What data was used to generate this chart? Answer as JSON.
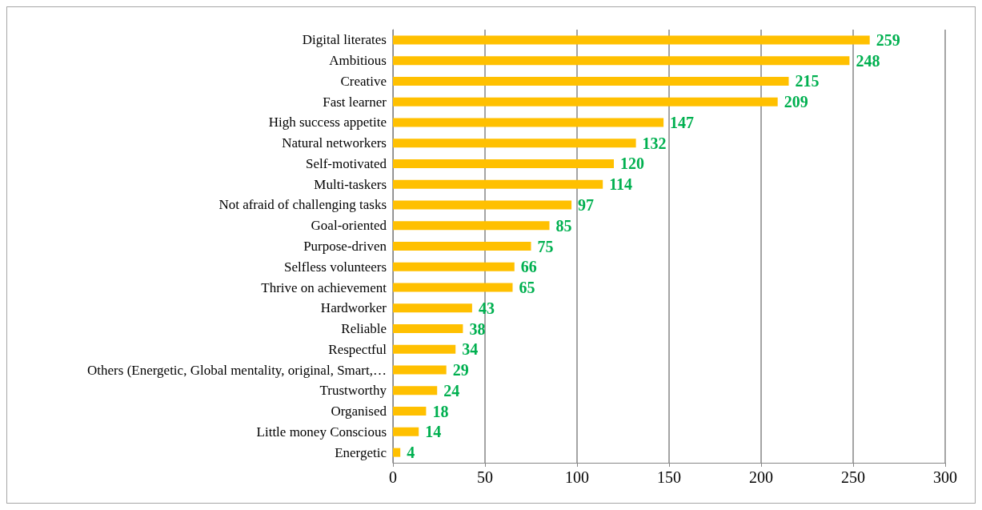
{
  "chart_data": {
    "type": "bar",
    "orientation": "horizontal",
    "categories": [
      "Digital literates",
      "Ambitious",
      "Creative",
      "Fast learner",
      "High success appetite",
      "Natural networkers",
      "Self-motivated",
      "Multi-taskers",
      "Not afraid of challenging tasks",
      "Goal-oriented",
      "Purpose-driven",
      "Selfless volunteers",
      "Thrive on achievement",
      "Hardworker",
      "Reliable",
      "Respectful",
      "Others (Energetic, Global mentality, original, Smart,…",
      "Trustworthy",
      "Organised",
      "Little money Conscious",
      "Energetic"
    ],
    "values": [
      259,
      248,
      215,
      209,
      147,
      132,
      120,
      114,
      97,
      85,
      75,
      66,
      65,
      43,
      38,
      34,
      29,
      24,
      18,
      14,
      4
    ],
    "color": "#ffc000",
    "xlim": [
      0,
      300
    ],
    "xticks": [
      0,
      50,
      100,
      150,
      200,
      250,
      300
    ],
    "grid": "x",
    "data_labels": true
  }
}
